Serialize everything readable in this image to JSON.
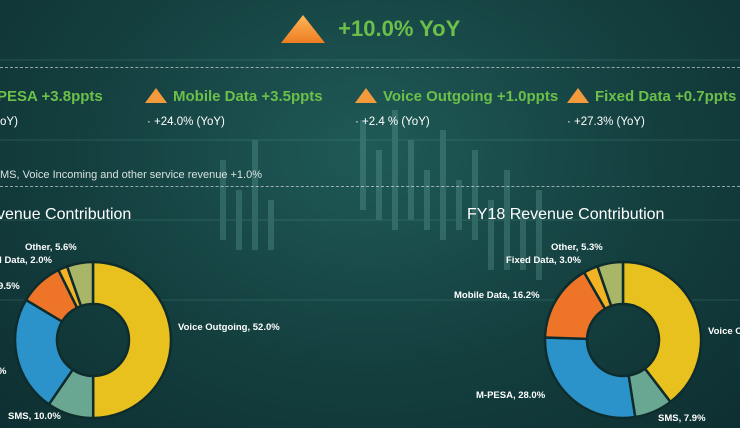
{
  "headline": {
    "value": "+10.0% YoY"
  },
  "metrics": [
    {
      "label": "PESA +3.8ppts",
      "sub": "oY)"
    },
    {
      "label": "Mobile Data +3.5ppts",
      "sub": "+24.0% (YoY)"
    },
    {
      "label": "Voice Outgoing +1.0ppts",
      "sub": "+2.4 % (YoY)"
    },
    {
      "label": "Fixed Data +0.7ppts",
      "sub": "+27.3% (YoY)"
    }
  ],
  "note": "MS, Voice Incoming and other service revenue +1.0%",
  "colors": {
    "accent_green": "#6cc04a",
    "triangle": "#f39a3d"
  },
  "chart_data": [
    {
      "type": "pie",
      "title": "venue Contribution",
      "series": [
        {
          "label": "Voice Outgoing, 52.0%",
          "value": 52.0,
          "color": "#e8c11e"
        },
        {
          "label": "SMS, 10.0%",
          "value": 10.0,
          "color": "#6aa792"
        },
        {
          "label": "%",
          "value": 25.0,
          "color": "#2b93c9"
        },
        {
          "label": "9.5%",
          "value": 9.5,
          "color": "#ee7427"
        },
        {
          "label": "d Data, 2.0%",
          "value": 2.0,
          "color": "#f4b325"
        },
        {
          "label": "Other, 5.6%",
          "value": 5.6,
          "color": "#a9b567"
        }
      ]
    },
    {
      "type": "pie",
      "title": "FY18 Revenue Contribution",
      "series": [
        {
          "label": "Voice O",
          "value": 39.6,
          "color": "#e8c11e"
        },
        {
          "label": "SMS, 7.9%",
          "value": 7.9,
          "color": "#6aa792"
        },
        {
          "label": "M-PESA, 28.0%",
          "value": 28.0,
          "color": "#2b93c9"
        },
        {
          "label": "Mobile Data, 16.2%",
          "value": 16.2,
          "color": "#ee7427"
        },
        {
          "label": "Fixed Data, 3.0%",
          "value": 3.0,
          "color": "#f4b325"
        },
        {
          "label": "Other, 5.3%",
          "value": 5.3,
          "color": "#a9b567"
        }
      ]
    }
  ]
}
